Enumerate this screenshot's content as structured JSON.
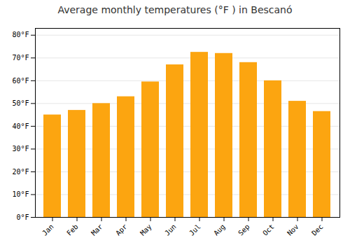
{
  "chart_data": {
    "type": "bar",
    "title": "Average monthly temperatures (°F ) in Bescanó",
    "categories": [
      "Jan",
      "Feb",
      "Mar",
      "Apr",
      "May",
      "Jun",
      "Jul",
      "Aug",
      "Sep",
      "Oct",
      "Nov",
      "Dec"
    ],
    "values": [
      45,
      47,
      50,
      53,
      59.5,
      67,
      72.5,
      72,
      68,
      60,
      51,
      46.5
    ],
    "color": "#FCA510",
    "ylim": [
      0,
      83
    ],
    "yticks": [
      {
        "value": 0,
        "label": "0°F"
      },
      {
        "value": 10,
        "label": "10°F"
      },
      {
        "value": 20,
        "label": "20°F"
      },
      {
        "value": 30,
        "label": "30°F"
      },
      {
        "value": 40,
        "label": "40°F"
      },
      {
        "value": 50,
        "label": "50°F"
      },
      {
        "value": 60,
        "label": "60°F"
      },
      {
        "value": 70,
        "label": "70°F"
      },
      {
        "value": 80,
        "label": "80°F"
      }
    ],
    "grid": true
  }
}
